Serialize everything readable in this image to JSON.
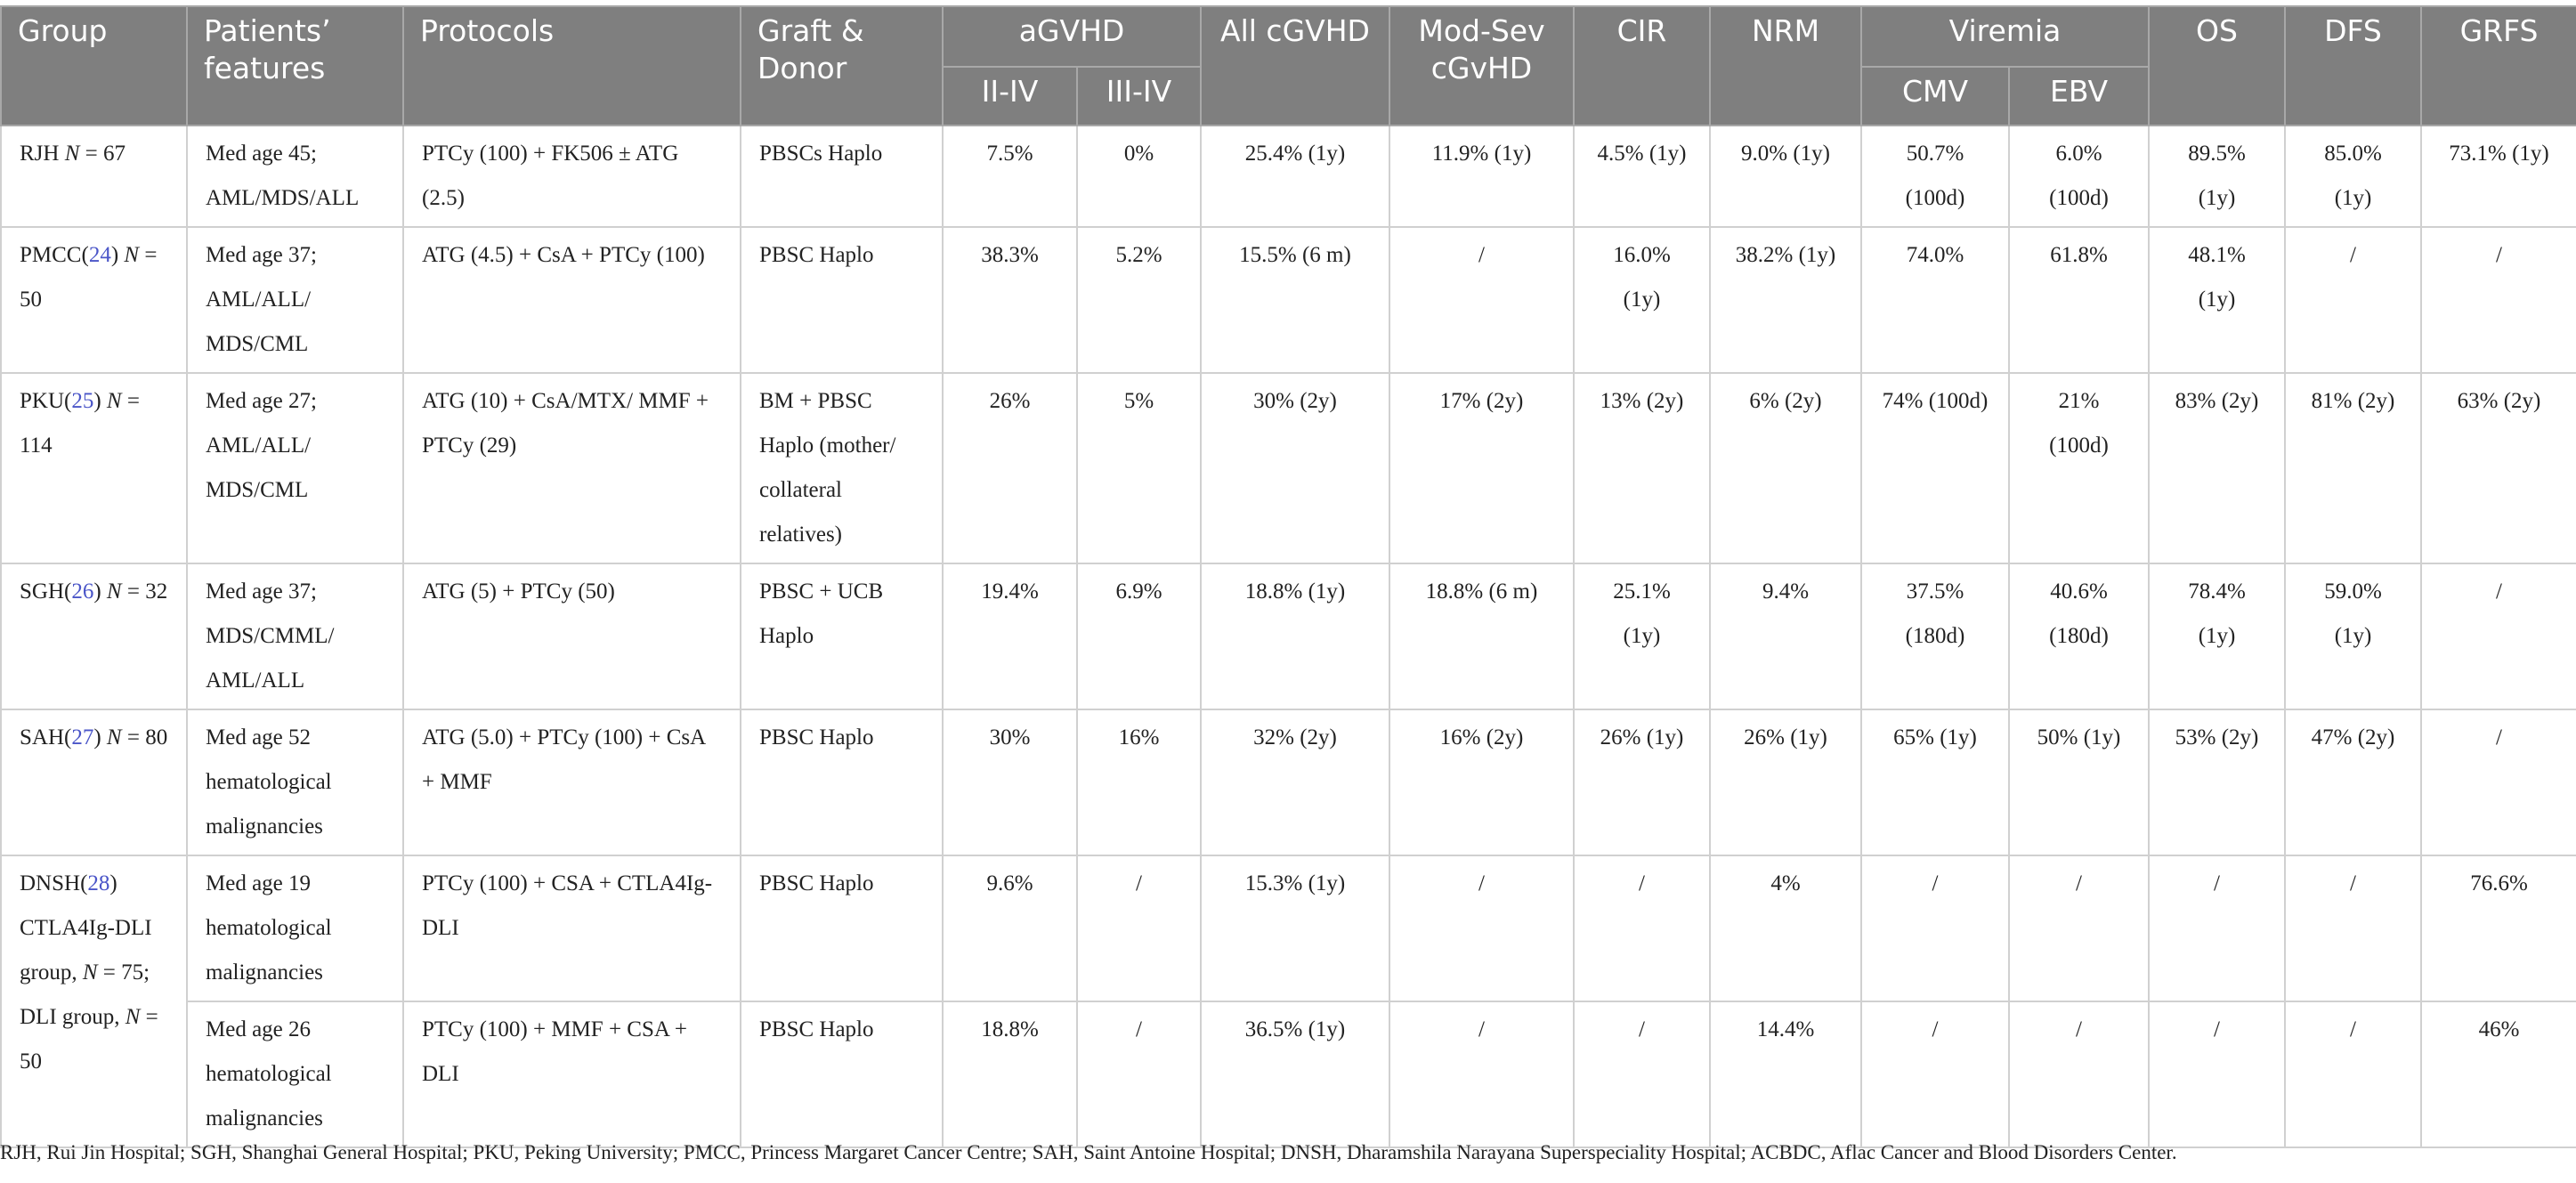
{
  "table": {
    "columns": [
      "Group",
      "Patients’ features",
      "Protocols",
      "Graft & Donor",
      "aGVHD",
      "II-IV",
      "III-IV",
      "All cGVHD",
      "Mod-Sev cGvHD",
      "CIR",
      "NRM",
      "Viremia",
      "CMV",
      "EBV",
      "OS",
      "DFS",
      "GRFS"
    ],
    "rows": [
      {
        "group": [
          {
            "text": "RJH "
          },
          {
            "text": "N",
            "style": "italic"
          },
          {
            "text": " = 67"
          }
        ],
        "cells": [
          "Med age 45; AML/MDS/ALL",
          "PTCy (100) + FK506 ± ATG (2.5)",
          "PBSCs Haplo",
          "7.5%",
          "0%",
          "25.4% (1y)",
          "11.9% (1y)",
          "4.5% (1y)",
          "9.0% (1y)",
          "50.7% (100d)",
          "6.0% (100d)",
          "89.5% (1y)",
          "85.0% (1y)",
          "73.1% (1y)"
        ]
      },
      {
        "group": [
          {
            "text": "PMCC("
          },
          {
            "text": "24",
            "style": "ref"
          },
          {
            "text": ") "
          },
          {
            "text": "N",
            "style": "italic"
          },
          {
            "text": " = 50"
          }
        ],
        "cells": [
          "Med age 37; AML/ALL/ MDS/CML",
          "ATG (4.5) + CsA + PTCy (100)",
          "PBSC Haplo",
          "38.3%",
          "5.2%",
          "15.5% (6 m)",
          "/",
          "16.0% (1y)",
          "38.2% (1y)",
          "74.0%",
          "61.8%",
          "48.1% (1y)",
          "/",
          "/"
        ]
      },
      {
        "group": [
          {
            "text": "PKU("
          },
          {
            "text": "25",
            "style": "ref"
          },
          {
            "text": ") "
          },
          {
            "text": "N",
            "style": "italic"
          },
          {
            "text": " = 114"
          }
        ],
        "cells": [
          "Med age 27; AML/ALL/ MDS/CML",
          "ATG (10) + CsA/MTX/ MMF + PTCy (29)",
          "BM + PBSC Haplo (mother/ collateral relatives)",
          "26%",
          "5%",
          "30% (2y)",
          "17% (2y)",
          "13% (2y)",
          "6% (2y)",
          "74% (100d)",
          "21% (100d)",
          "83% (2y)",
          "81% (2y)",
          "63% (2y)"
        ]
      },
      {
        "group": [
          {
            "text": "SGH("
          },
          {
            "text": "26",
            "style": "ref"
          },
          {
            "text": ") "
          },
          {
            "text": "N",
            "style": "italic"
          },
          {
            "text": " = 32"
          }
        ],
        "cells": [
          "Med age 37; MDS/CMML/ AML/ALL",
          "ATG (5) + PTCy (50)",
          "PBSC + UCB Haplo",
          "19.4%",
          "6.9%",
          "18.8% (1y)",
          "18.8% (6 m)",
          "25.1% (1y)",
          "9.4%",
          "37.5% (180d)",
          "40.6% (180d)",
          "78.4% (1y)",
          "59.0% (1y)",
          "/"
        ]
      },
      {
        "group": [
          {
            "text": "SAH("
          },
          {
            "text": "27",
            "style": "ref"
          },
          {
            "text": ") "
          },
          {
            "text": "N",
            "style": "italic"
          },
          {
            "text": " = 80"
          }
        ],
        "cells": [
          "Med age 52 hematological malignancies",
          "ATG (5.0) + PTCy (100) + CsA + MMF",
          "PBSC Haplo",
          "30%",
          "16%",
          "32% (2y)",
          "16% (2y)",
          "26% (1y)",
          "26% (1y)",
          "65% (1y)",
          "50% (1y)",
          "53% (2y)",
          "47% (2y)",
          "/"
        ]
      },
      {
        "group": [
          {
            "text": "DNSH("
          },
          {
            "text": "28",
            "style": "ref"
          },
          {
            "text": ") CTLA4Ig-DLI group, "
          },
          {
            "text": "N",
            "style": "italic"
          },
          {
            "text": " = 75; DLI group, "
          },
          {
            "text": "N",
            "style": "italic"
          },
          {
            "text": " = 50"
          }
        ],
        "cells": [
          "Med age 19 hematological malignancies",
          "PTCy (100) + CSA + CTLA4Ig-DLI",
          "PBSC Haplo",
          "9.6%",
          "/",
          "15.3% (1y)",
          "/",
          "/",
          "4%",
          "/",
          "/",
          "/",
          "/",
          "76.6%"
        ]
      },
      {
        "cells": [
          "Med age 26 hematological malignancies",
          "PTCy (100) + MMF + CSA + DLI",
          "PBSC Haplo",
          "18.8%",
          "/",
          "36.5% (1y)",
          "/",
          "/",
          "14.4%",
          "/",
          "/",
          "/",
          "/",
          "46%"
        ]
      }
    ]
  },
  "footnote": "RJH, Rui Jin Hospital; SGH, Shanghai General Hospital; PKU, Peking University; PMCC, Princess Margaret Cancer Centre; SAH, Saint Antoine Hospital; DNSH, Dharamshila Narayana Superspeciality Hospital; ACBDC, Aflac Cancer and Blood Disorders Center."
}
